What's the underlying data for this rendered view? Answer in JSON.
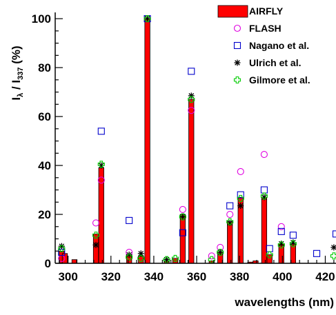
{
  "chart_data": {
    "type": "bar",
    "xlabel": "wavelengths (nm)",
    "ylabel_main": "I",
    "ylabel_sub1": "λ",
    "ylabel_mid": " / I",
    "ylabel_sub2": "337",
    "ylabel_unit": " (%)",
    "xlim": [
      294,
      425
    ],
    "ylim": [
      0,
      102
    ],
    "x_ticks": [
      300,
      320,
      340,
      360,
      380,
      400,
      420
    ],
    "y_ticks": [
      0,
      20,
      40,
      60,
      80,
      100
    ],
    "grid": false,
    "legend_position": "top-right",
    "colors": {
      "airfly": "#ff0000",
      "flash": "#e000e0",
      "nagano": "#0000cc",
      "ulrich": "#000000",
      "gilmore": "#00cc00"
    },
    "series": [
      {
        "name": "AIRFLY",
        "marker": "bar",
        "x": [
          297,
          298.5,
          303,
          313,
          315.5,
          328.5,
          334,
          337,
          346,
          350,
          353.5,
          357.5,
          367,
          371,
          375.5,
          380.5,
          385,
          387.5,
          391.5,
          394,
          399.5,
          405
        ],
        "values": [
          5,
          4,
          1.5,
          12,
          39,
          3.5,
          3,
          100,
          1,
          2,
          20,
          67,
          1,
          4.5,
          17,
          27,
          0.5,
          1,
          27,
          3.5,
          8,
          8
        ]
      },
      {
        "name": "FLASH",
        "marker": "circle",
        "x": [
          297,
          313,
          315.5,
          328.5,
          337,
          353.5,
          357.5,
          367,
          371,
          375.5,
          380.5,
          391.5,
          399.5
        ],
        "values": [
          2,
          16.5,
          34,
          4.5,
          100,
          22,
          62.5,
          3,
          6.5,
          20,
          37.5,
          44.5,
          15
        ]
      },
      {
        "name": "Nagano et al.",
        "marker": "square",
        "x": [
          297,
          315.5,
          328.5,
          337,
          353.5,
          357.5,
          375.5,
          380.5,
          391.5,
          394,
          399.5,
          405,
          416,
          425
        ],
        "values": [
          4.5,
          54,
          17.5,
          100,
          12.5,
          78.5,
          23.5,
          28,
          30,
          6,
          13,
          11.5,
          4,
          12
        ]
      },
      {
        "name": "Ulrich et al.",
        "marker": "asterisk",
        "x": [
          297,
          313,
          315.5,
          328.5,
          334,
          337,
          346,
          353.5,
          357.5,
          371,
          375.5,
          380.5,
          391.5,
          399.5,
          405,
          424
        ],
        "values": [
          7,
          7.5,
          40,
          3.5,
          4,
          100,
          1.5,
          19,
          68.5,
          4.5,
          16.5,
          23.5,
          27,
          8,
          8.5,
          6.5
        ]
      },
      {
        "name": "Gilmore et al.",
        "marker": "cross",
        "x": [
          297,
          313,
          315.5,
          328.5,
          334,
          337,
          346,
          350,
          353.5,
          357.5,
          367,
          371,
          375.5,
          380.5,
          391.5,
          394,
          399.5,
          405,
          424
        ],
        "values": [
          6,
          11.5,
          40.5,
          2.5,
          2,
          100,
          1.5,
          2,
          19,
          67,
          1.5,
          4.5,
          17,
          26.5,
          27.5,
          3.5,
          7.5,
          8,
          3
        ]
      }
    ]
  }
}
